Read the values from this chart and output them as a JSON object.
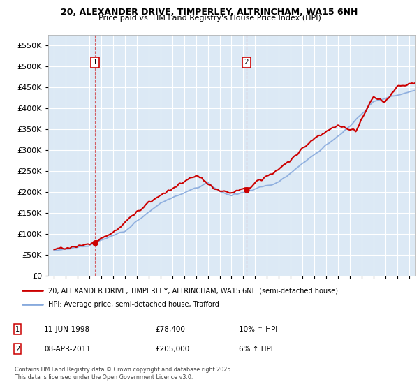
{
  "title_line1": "20, ALEXANDER DRIVE, TIMPERLEY, ALTRINCHAM, WA15 6NH",
  "title_line2": "Price paid vs. HM Land Registry's House Price Index (HPI)",
  "plot_bg_color": "#dce9f5",
  "grid_color": "#ffffff",
  "fig_bg_color": "#ffffff",
  "line1_color": "#cc0000",
  "line2_color": "#88aadd",
  "marker1_date_x": 1998.44,
  "marker2_date_x": 2011.27,
  "marker1_y": 78400,
  "marker2_y": 205000,
  "legend1": "20, ALEXANDER DRIVE, TIMPERLEY, ALTRINCHAM, WA15 6NH (semi-detached house)",
  "legend2": "HPI: Average price, semi-detached house, Trafford",
  "annotation1_date": "11-JUN-1998",
  "annotation1_price": "£78,400",
  "annotation1_hpi": "10% ↑ HPI",
  "annotation2_date": "08-APR-2011",
  "annotation2_price": "£205,000",
  "annotation2_hpi": "6% ↑ HPI",
  "footer": "Contains HM Land Registry data © Crown copyright and database right 2025.\nThis data is licensed under the Open Government Licence v3.0.",
  "ylim": [
    0,
    575000
  ],
  "xlim_start": 1994.5,
  "xlim_end": 2025.5
}
